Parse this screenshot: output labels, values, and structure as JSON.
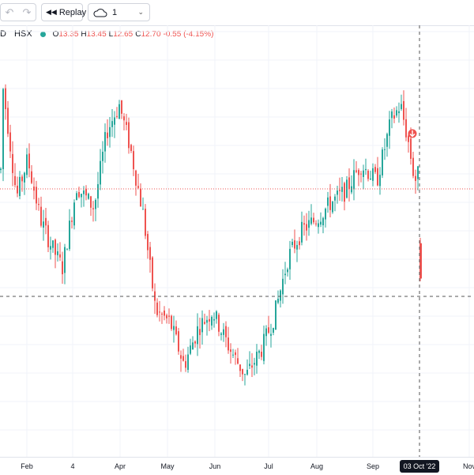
{
  "toolbar": {
    "undo_icon": "undo-icon",
    "redo_icon": "redo-icon",
    "replay_icon": "rewind-icon",
    "replay_label": "Replay",
    "layout_icon": "cloud-icon",
    "layout_value": "1",
    "layout_chevron": "chevron-down-icon"
  },
  "legend": {
    "symbol_suffix": "D",
    "exchange": "HSX",
    "status_color": "#26a69a",
    "o_label": "O",
    "o_value": "13.35",
    "h_label": "H",
    "h_value": "13.45",
    "l_label": "L",
    "l_value": "12.65",
    "c_label": "C",
    "c_value": "12.70",
    "change": "-0.55 (-4.15%)"
  },
  "x_axis": {
    "labels": [
      "Feb",
      "4",
      "Apr",
      "May",
      "Jun",
      "Jul",
      "Aug",
      "Sep",
      "Nov"
    ],
    "crosshair_label": "03 Oct '22"
  },
  "colors": {
    "up": "#26a69a",
    "down": "#ef5350",
    "grid": "#f0f3fa",
    "crosshair": "#555555",
    "price_line": "#ef5350"
  },
  "chart_data": {
    "type": "candlestick",
    "x_range": [
      "2022-01",
      "2022-11"
    ],
    "approx_close_series": [
      {
        "x": "Jan",
        "close": 16.3
      },
      {
        "x": "Feb",
        "close": 14.6
      },
      {
        "x": "Mar",
        "close": 13.1
      },
      {
        "x": "Apr",
        "close": 15.7
      },
      {
        "x": "May",
        "close": 11.9
      },
      {
        "x": "Jun",
        "close": 11.0
      },
      {
        "x": "Jul",
        "close": 12.1
      },
      {
        "x": "Aug",
        "close": 14.5
      },
      {
        "x": "Sep",
        "close": 15.0
      },
      {
        "x": "Oct",
        "close": 12.7
      }
    ],
    "last_bar": {
      "date": "03 Oct '22",
      "open": 13.35,
      "high": 13.45,
      "low": 12.65,
      "close": 12.7
    },
    "grid": true,
    "markers": [
      {
        "type": "dividend-down-arrow",
        "x": "late Sep"
      }
    ]
  }
}
